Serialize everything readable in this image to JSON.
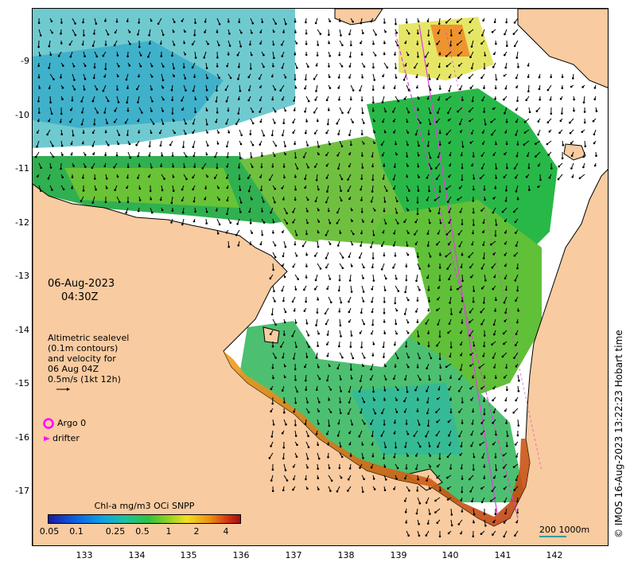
{
  "map": {
    "overlay": {
      "date": "06-Aug-2023",
      "time": "04:30Z",
      "altimetry_note": [
        "Altimetric sealevel",
        "(0.1m contours)",
        "and velocity for",
        "06 Aug 04Z",
        "0.5m/s (1kt 12h)"
      ],
      "argo_label": "Argo 0",
      "drifter_label": "drifter"
    },
    "colorbar": {
      "title": "Chl-a mg/m3 OCi SNPP",
      "labels": [
        "0.05",
        "0.1",
        "0.25",
        "0.5",
        "1",
        "2",
        "4"
      ]
    },
    "scale_label": "200  1000m",
    "credit": "© IMOS 16-Aug-2023 13:22:23 Hobart time",
    "axes": {
      "x_ticks": [
        "133",
        "134",
        "135",
        "136",
        "137",
        "138",
        "139",
        "140",
        "141",
        "142"
      ],
      "y_ticks": [
        "-9",
        "-10",
        "-11",
        "-12",
        "-13",
        "-14",
        "-15",
        "-16",
        "-17"
      ]
    },
    "colors": {
      "land": "#f8cba0",
      "ocean_no_data": "#ffffff",
      "track": "#e040e0",
      "argo": "#ff00ff",
      "scale_bar": "#3a9a9a"
    }
  }
}
